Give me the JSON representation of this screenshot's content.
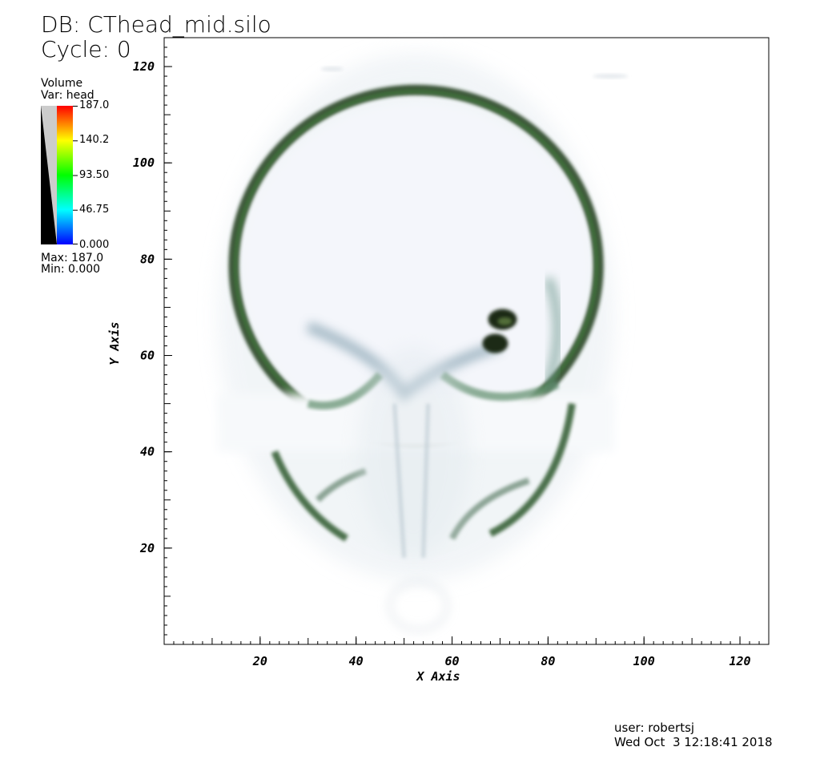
{
  "header": {
    "db_label": "DB: CThead_mid.silo",
    "cycle_label": "Cycle: 0"
  },
  "legend": {
    "plot_type": "Volume",
    "var_label": "Var: head",
    "max_label": "Max:  187.0",
    "min_label": "Min:  0.000",
    "ticks": [
      "187.0",
      "140.2",
      "93.50",
      "46.75",
      "0.000"
    ],
    "colors": [
      "#0000ff",
      "#00ffff",
      "#00ff00",
      "#ffff00",
      "#ff0000"
    ]
  },
  "footer": {
    "user_label": "user: robertsj",
    "date_label": "Wed Oct  3 12:18:41 2018"
  },
  "chart_data": {
    "type": "heatmap",
    "title": "",
    "xlabel": "X Axis",
    "ylabel": "Y Axis",
    "xlim": [
      0,
      126
    ],
    "ylim": [
      0,
      126
    ],
    "x_ticks": [
      20,
      40,
      60,
      80,
      100,
      120
    ],
    "y_ticks": [
      20,
      40,
      60,
      80,
      100,
      120
    ],
    "x_tick_labels": [
      "20",
      "40",
      "60",
      "80",
      "100",
      "120"
    ],
    "y_tick_labels": [
      "20",
      "40",
      "60",
      "80",
      "100",
      "120"
    ],
    "minor_step": 2,
    "variable": "head",
    "value_range": [
      0,
      187.0
    ],
    "structures": [
      {
        "name": "skull-outer-ring",
        "cx": 52.5,
        "cy": 78,
        "rx": 38,
        "ry": 36.5,
        "value": 120
      },
      {
        "name": "right-temporal-bone",
        "cx": 70.5,
        "cy": 65.5,
        "rx": 3.5,
        "ry": 5,
        "value": 150
      },
      {
        "name": "jaw-left",
        "cx": 30,
        "cy": 28,
        "rx": 5,
        "ry": 11,
        "value": 100
      },
      {
        "name": "jaw-right",
        "cx": 75,
        "cy": 28,
        "rx": 5,
        "ry": 11,
        "value": 100
      }
    ]
  }
}
